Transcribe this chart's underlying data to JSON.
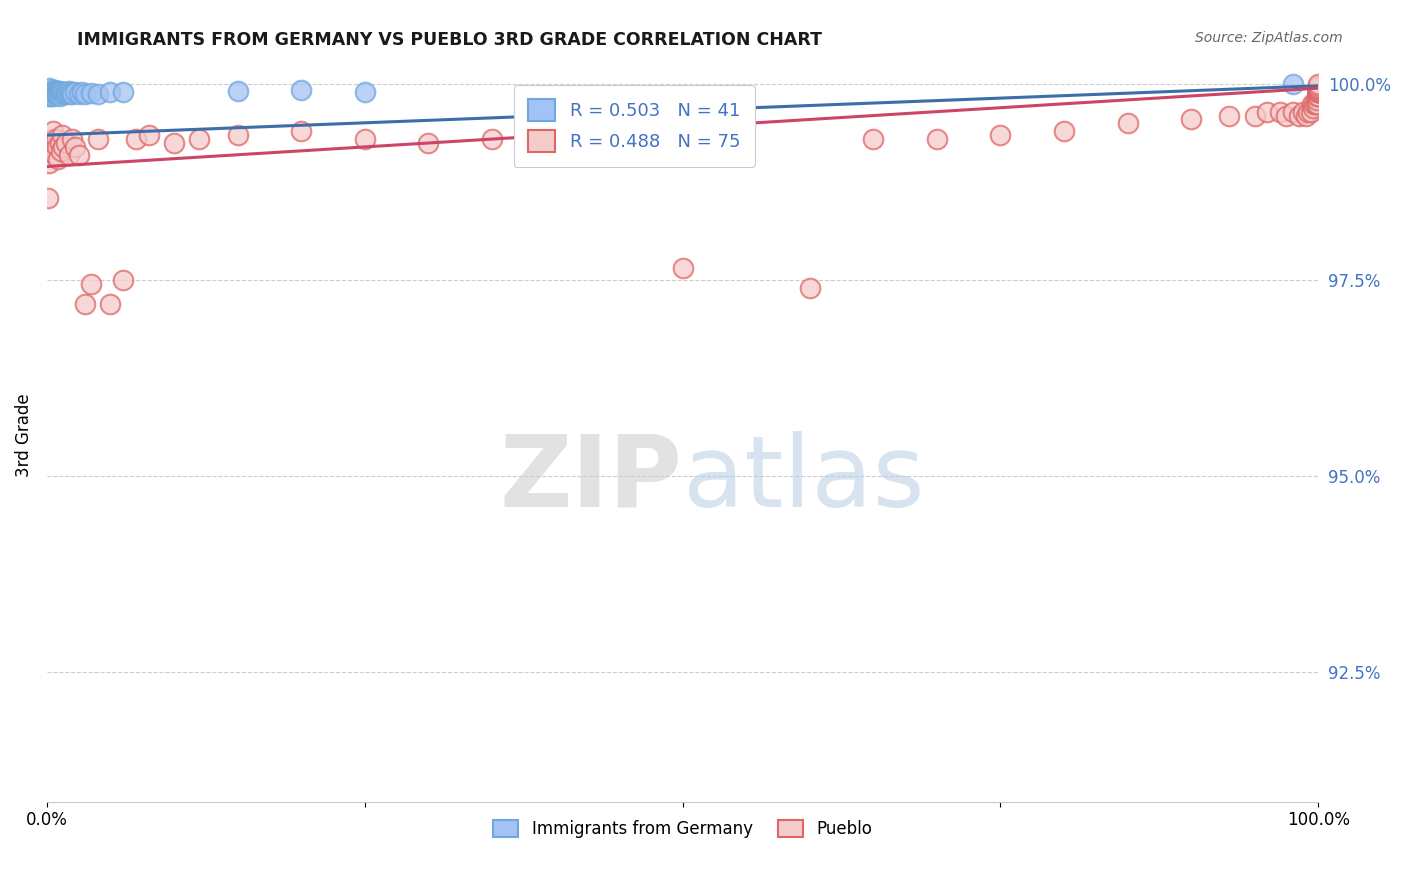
{
  "title": "IMMIGRANTS FROM GERMANY VS PUEBLO 3RD GRADE CORRELATION CHART",
  "source": "Source: ZipAtlas.com",
  "ylabel": "3rd Grade",
  "xlim": [
    0.0,
    1.0
  ],
  "ylim": [
    0.9085,
    1.002
  ],
  "yticks": [
    0.925,
    0.95,
    0.975,
    1.0
  ],
  "ytick_labels": [
    "92.5%",
    "95.0%",
    "97.5%",
    "100.0%"
  ],
  "xticks": [
    0.0,
    0.25,
    0.5,
    0.75,
    1.0
  ],
  "xtick_labels": [
    "0.0%",
    "",
    "",
    "",
    "100.0%"
  ],
  "blue_fill": "#a4c2f4",
  "blue_edge": "#6fa8dc",
  "pink_fill": "#f4cccc",
  "pink_edge": "#e06666",
  "blue_line_color": "#3d6ea8",
  "pink_line_color": "#cc4466",
  "R_blue": 0.503,
  "N_blue": 41,
  "R_pink": 0.488,
  "N_pink": 75,
  "legend_labels": [
    "Immigrants from Germany",
    "Pueblo"
  ],
  "blue_line_start_y": 0.9935,
  "blue_line_end_y": 0.9998,
  "pink_line_start_y": 0.9895,
  "pink_line_end_y": 0.9995,
  "blue_points_x": [
    0.001,
    0.002,
    0.002,
    0.003,
    0.003,
    0.004,
    0.004,
    0.005,
    0.005,
    0.006,
    0.006,
    0.007,
    0.007,
    0.008,
    0.008,
    0.009,
    0.009,
    0.01,
    0.01,
    0.011,
    0.012,
    0.013,
    0.014,
    0.015,
    0.016,
    0.017,
    0.018,
    0.019,
    0.02,
    0.022,
    0.025,
    0.028,
    0.03,
    0.035,
    0.04,
    0.05,
    0.06,
    0.15,
    0.2,
    0.25,
    0.98
  ],
  "blue_points_y": [
    0.9985,
    0.999,
    0.9995,
    0.999,
    0.9985,
    0.9992,
    0.9988,
    0.999,
    0.9985,
    0.9992,
    0.9987,
    0.999,
    0.9988,
    0.9991,
    0.9986,
    0.999,
    0.9987,
    0.9991,
    0.9985,
    0.999,
    0.9988,
    0.999,
    0.9987,
    0.999,
    0.9989,
    0.9991,
    0.9988,
    0.999,
    0.9987,
    0.999,
    0.9988,
    0.999,
    0.9987,
    0.9989,
    0.9988,
    0.999,
    0.999,
    0.9991,
    0.9992,
    0.999,
    1.0
  ],
  "pink_points_x": [
    0.001,
    0.002,
    0.003,
    0.004,
    0.005,
    0.005,
    0.006,
    0.007,
    0.008,
    0.009,
    0.01,
    0.011,
    0.012,
    0.013,
    0.015,
    0.017,
    0.02,
    0.022,
    0.025,
    0.03,
    0.035,
    0.04,
    0.05,
    0.06,
    0.07,
    0.08,
    0.1,
    0.12,
    0.15,
    0.2,
    0.25,
    0.3,
    0.35,
    0.4,
    0.43,
    0.5,
    0.6,
    0.65,
    0.7,
    0.75,
    0.8,
    0.85,
    0.9,
    0.93,
    0.95,
    0.96,
    0.97,
    0.975,
    0.98,
    0.985,
    0.988,
    0.99,
    0.992,
    0.994,
    0.995,
    0.996,
    0.997,
    0.998,
    0.999,
    0.999,
    0.999,
    1.0,
    1.0,
    1.0,
    1.0,
    1.0,
    1.0,
    1.0,
    1.0,
    1.0,
    1.0,
    1.0,
    1.0,
    1.0,
    1.0
  ],
  "pink_points_y": [
    0.9855,
    0.99,
    0.992,
    0.993,
    0.994,
    0.992,
    0.991,
    0.993,
    0.992,
    0.9905,
    0.9925,
    0.9915,
    0.9935,
    0.992,
    0.9925,
    0.991,
    0.993,
    0.992,
    0.991,
    0.972,
    0.9745,
    0.993,
    0.972,
    0.975,
    0.993,
    0.9935,
    0.9925,
    0.993,
    0.9935,
    0.994,
    0.993,
    0.9925,
    0.993,
    0.993,
    0.9935,
    0.9765,
    0.974,
    0.993,
    0.993,
    0.9935,
    0.994,
    0.995,
    0.9955,
    0.996,
    0.996,
    0.9965,
    0.9965,
    0.996,
    0.9965,
    0.996,
    0.9965,
    0.996,
    0.9965,
    0.9965,
    0.9975,
    0.997,
    0.9975,
    0.9975,
    0.9975,
    0.998,
    0.9985,
    0.9985,
    0.999,
    0.999,
    0.999,
    0.999,
    0.999,
    0.9992,
    0.9992,
    0.9992,
    0.9995,
    0.9995,
    0.9995,
    0.9998,
    1.0
  ]
}
